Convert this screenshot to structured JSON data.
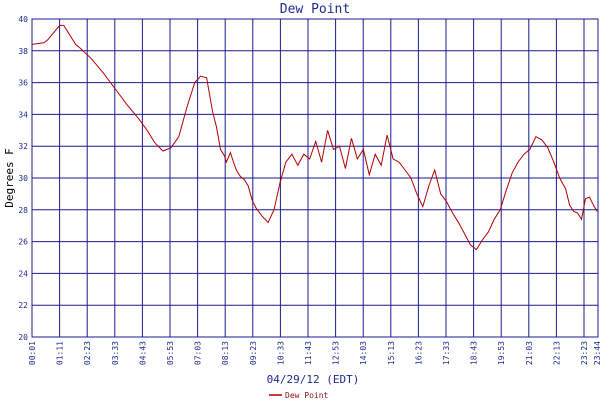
{
  "chart_data": {
    "type": "line",
    "title": "Dew Point",
    "xlabel": "04/29/12 (EDT)",
    "ylabel": "Degrees F",
    "ylim": [
      20,
      40
    ],
    "y_ticks": [
      20,
      22,
      24,
      26,
      28,
      30,
      32,
      34,
      36,
      38,
      40
    ],
    "x_ticks": [
      "00:01",
      "01:11",
      "02:23",
      "03:33",
      "04:43",
      "05:53",
      "07:03",
      "08:13",
      "09:23",
      "10:33",
      "11:43",
      "12:53",
      "14:03",
      "15:13",
      "16:23",
      "17:33",
      "18:43",
      "19:53",
      "21:03",
      "22:13",
      "23:23",
      "23:44"
    ],
    "grid": true,
    "legend_position": "bottom-center",
    "colors": {
      "line": "#b00000",
      "grid": "#1a1a8c",
      "text": "#1f2a8c"
    },
    "series": [
      {
        "name": "Dew Point",
        "x_minutes": [
          0,
          30,
          40,
          50,
          60,
          70,
          80,
          90,
          100,
          110,
          120,
          150,
          180,
          210,
          240,
          270,
          290,
          310,
          330,
          350,
          370,
          390,
          410,
          425,
          440,
          455,
          465,
          475,
          485,
          490,
          500,
          505,
          515,
          525,
          535,
          545,
          555,
          565,
          580,
          595,
          610,
          625,
          640,
          655,
          670,
          685,
          700,
          715,
          730,
          745,
          760,
          775,
          790,
          805,
          820,
          835,
          850,
          865,
          880,
          895,
          910,
          925,
          940,
          955,
          970,
          985,
          1000,
          1015,
          1030,
          1045,
          1060,
          1075,
          1090,
          1105,
          1120,
          1135,
          1150,
          1165,
          1180,
          1195,
          1210,
          1225,
          1240,
          1255,
          1270,
          1285,
          1300,
          1315,
          1330,
          1345,
          1355,
          1365,
          1375,
          1385,
          1395,
          1405,
          1415,
          1424
        ],
        "values": [
          38.4,
          38.5,
          38.7,
          39.0,
          39.3,
          39.6,
          39.6,
          39.2,
          38.8,
          38.4,
          38.2,
          37.5,
          36.6,
          35.6,
          34.6,
          33.7,
          33.0,
          32.2,
          31.7,
          31.9,
          32.6,
          34.4,
          36.0,
          36.4,
          36.3,
          34.2,
          33.2,
          31.8,
          31.4,
          31.0,
          31.6,
          31.2,
          30.5,
          30.1,
          29.9,
          29.5,
          28.6,
          28.1,
          27.6,
          27.2,
          28.0,
          29.7,
          31.0,
          31.5,
          30.8,
          31.5,
          31.2,
          32.3,
          31.0,
          33.0,
          31.8,
          32.0,
          30.6,
          32.5,
          31.2,
          31.8,
          30.2,
          31.5,
          30.8,
          32.7,
          31.2,
          31.0,
          30.5,
          30.0,
          29.0,
          28.2,
          29.5,
          30.5,
          29.0,
          28.5,
          27.8,
          27.2,
          26.5,
          25.8,
          25.5,
          26.1,
          26.6,
          27.4,
          28.0,
          29.2,
          30.3,
          31.0,
          31.5,
          31.8,
          32.6,
          32.4,
          31.9,
          31.0,
          30.0,
          29.3,
          28.3,
          27.9,
          27.8,
          27.4,
          28.7,
          28.8,
          28.3,
          27.9
        ]
      }
    ]
  }
}
